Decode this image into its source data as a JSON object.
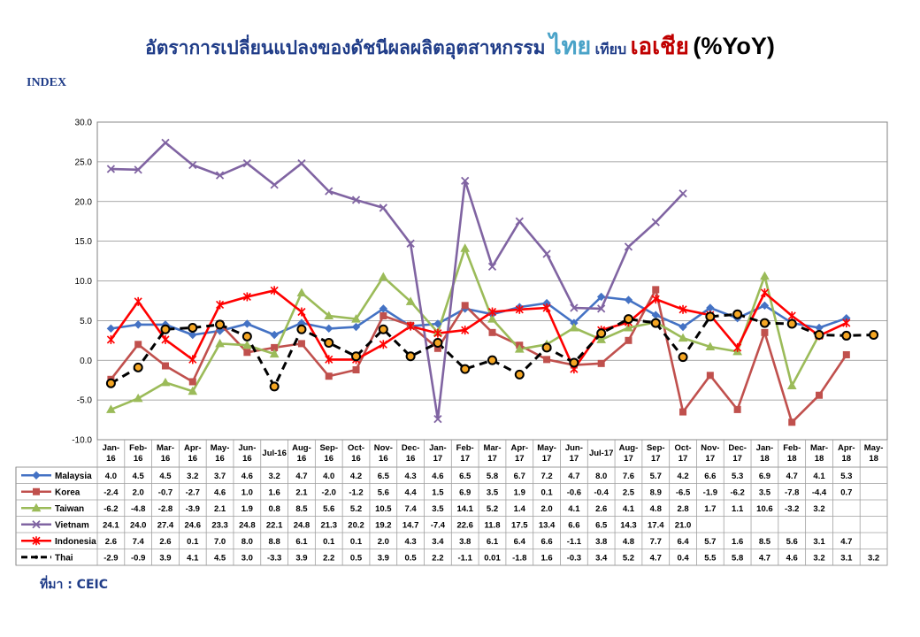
{
  "title": {
    "main": "อัตราการเปลี่ยนแปลงของดัชนีผลผลิตอุตสาหกรรม",
    "thai": "ไทย",
    "mid": "เทียบ",
    "asia": "เอเชีย",
    "yoy": "(%YoY)"
  },
  "source": "ที่มา : CEIC",
  "chart_data": {
    "type": "line",
    "ylabel": "INDEX",
    "ylim": [
      -10,
      30
    ],
    "yticks": [
      "-10.0",
      "-5.0",
      "0.0",
      "5.0",
      "10.0",
      "15.0",
      "20.0",
      "25.0",
      "30.0"
    ],
    "grid": true,
    "legend": "table-below",
    "categories": [
      [
        "Jan-",
        "16"
      ],
      [
        "Feb-",
        "16"
      ],
      [
        "Mar-",
        "16"
      ],
      [
        "Apr-",
        "16"
      ],
      [
        "May-",
        "16"
      ],
      [
        "Jun-",
        "16"
      ],
      [
        "Jul-16"
      ],
      [
        "Aug-",
        "16"
      ],
      [
        "Sep-",
        "16"
      ],
      [
        "Oct-",
        "16"
      ],
      [
        "Nov-",
        "16"
      ],
      [
        "Dec-",
        "16"
      ],
      [
        "Jan-",
        "17"
      ],
      [
        "Feb-",
        "17"
      ],
      [
        "Mar-",
        "17"
      ],
      [
        "Apr-",
        "17"
      ],
      [
        "May-",
        "17"
      ],
      [
        "Jun-",
        "17"
      ],
      [
        "Jul-17"
      ],
      [
        "Aug-",
        "17"
      ],
      [
        "Sep-",
        "17"
      ],
      [
        "Oct-",
        "17"
      ],
      [
        "Nov-",
        "17"
      ],
      [
        "Dec-",
        "17"
      ],
      [
        "Jan-",
        "18"
      ],
      [
        "Feb-",
        "18"
      ],
      [
        "Mar-",
        "18"
      ],
      [
        "Apr-",
        "18"
      ],
      [
        "May-",
        "18"
      ]
    ],
    "series": [
      {
        "name": "Malaysia",
        "color": "#4472c4",
        "marker": "diamond",
        "dash": false,
        "values": [
          4.0,
          4.5,
          4.5,
          3.2,
          3.7,
          4.6,
          3.2,
          4.7,
          4.0,
          4.2,
          6.5,
          4.3,
          4.6,
          6.5,
          5.8,
          6.7,
          7.2,
          4.7,
          8.0,
          7.6,
          5.7,
          4.2,
          6.6,
          5.3,
          6.9,
          4.7,
          4.1,
          5.3,
          null
        ],
        "labels": [
          "4.0",
          "4.5",
          "4.5",
          "3.2",
          "3.7",
          "4.6",
          "3.2",
          "4.7",
          "4.0",
          "4.2",
          "6.5",
          "4.3",
          "4.6",
          "6.5",
          "5.8",
          "6.7",
          "7.2",
          "4.7",
          "8.0",
          "7.6",
          "5.7",
          "4.2",
          "6.6",
          "5.3",
          "6.9",
          "4.7",
          "4.1",
          "5.3",
          ""
        ]
      },
      {
        "name": "Korea",
        "color": "#c0504d",
        "marker": "square",
        "dash": false,
        "values": [
          -2.4,
          2.0,
          -0.7,
          -2.7,
          4.6,
          1.0,
          1.6,
          2.1,
          -2.0,
          -1.2,
          5.6,
          4.4,
          1.5,
          6.9,
          3.5,
          1.9,
          0.1,
          -0.6,
          -0.4,
          2.5,
          8.9,
          -6.5,
          -1.9,
          -6.2,
          3.5,
          -7.8,
          -4.4,
          0.7,
          null
        ],
        "labels": [
          "-2.4",
          "2.0",
          "-0.7",
          "-2.7",
          "4.6",
          "1.0",
          "1.6",
          "2.1",
          "-2.0",
          "-1.2",
          "5.6",
          "4.4",
          "1.5",
          "6.9",
          "3.5",
          "1.9",
          "0.1",
          "-0.6",
          "-0.4",
          "2.5",
          "8.9",
          "-6.5",
          "-1.9",
          "-6.2",
          "3.5",
          "-7.8",
          "-4.4",
          "0.7",
          ""
        ]
      },
      {
        "name": "Taiwan",
        "color": "#9bbb59",
        "marker": "triangle",
        "dash": false,
        "values": [
          -6.2,
          -4.8,
          -2.8,
          -3.9,
          2.1,
          1.9,
          0.8,
          8.5,
          5.6,
          5.2,
          10.5,
          7.4,
          3.5,
          14.1,
          5.2,
          1.4,
          2.0,
          4.1,
          2.6,
          4.1,
          4.8,
          2.8,
          1.7,
          1.1,
          10.6,
          -3.2,
          3.2,
          null,
          null
        ],
        "labels": [
          "-6.2",
          "-4.8",
          "-2.8",
          "-3.9",
          "2.1",
          "1.9",
          "0.8",
          "8.5",
          "5.6",
          "5.2",
          "10.5",
          "7.4",
          "3.5",
          "14.1",
          "5.2",
          "1.4",
          "2.0",
          "4.1",
          "2.6",
          "4.1",
          "4.8",
          "2.8",
          "1.7",
          "1.1",
          "10.6",
          "-3.2",
          "3.2",
          "",
          ""
        ]
      },
      {
        "name": "Vietnam",
        "color": "#8064a2",
        "marker": "x",
        "dash": false,
        "values": [
          24.1,
          24.0,
          27.4,
          24.6,
          23.3,
          24.8,
          22.1,
          24.8,
          21.3,
          20.2,
          19.2,
          14.7,
          -7.4,
          22.6,
          11.8,
          17.5,
          13.4,
          6.6,
          6.5,
          14.3,
          17.4,
          21.0,
          null,
          null,
          null,
          null,
          null,
          null,
          null
        ],
        "labels": [
          "24.1",
          "24.0",
          "27.4",
          "24.6",
          "23.3",
          "24.8",
          "22.1",
          "24.8",
          "21.3",
          "20.2",
          "19.2",
          "14.7",
          "-7.4",
          "22.6",
          "11.8",
          "17.5",
          "13.4",
          "6.6",
          "6.5",
          "14.3",
          "17.4",
          "21.0",
          "",
          "",
          "",
          "",
          "",
          "",
          ""
        ]
      },
      {
        "name": "Indonesia",
        "color": "#ff0000",
        "marker": "star",
        "dash": false,
        "values": [
          2.6,
          7.4,
          2.6,
          0.1,
          7.0,
          8.0,
          8.8,
          6.1,
          0.1,
          0.1,
          2.0,
          4.3,
          3.4,
          3.8,
          6.1,
          6.4,
          6.6,
          -1.1,
          3.8,
          4.8,
          7.7,
          6.4,
          5.7,
          1.6,
          8.5,
          5.6,
          3.1,
          4.7,
          null
        ],
        "labels": [
          "2.6",
          "7.4",
          "2.6",
          "0.1",
          "7.0",
          "8.0",
          "8.8",
          "6.1",
          "0.1",
          "0.1",
          "2.0",
          "4.3",
          "3.4",
          "3.8",
          "6.1",
          "6.4",
          "6.6",
          "-1.1",
          "3.8",
          "4.8",
          "7.7",
          "6.4",
          "5.7",
          "1.6",
          "8.5",
          "5.6",
          "3.1",
          "4.7",
          ""
        ]
      },
      {
        "name": "Thai",
        "color": "#000000",
        "marker": "circle",
        "dash": true,
        "values": [
          -2.9,
          -0.9,
          3.9,
          4.1,
          4.5,
          3.0,
          -3.3,
          3.9,
          2.2,
          0.5,
          3.9,
          0.5,
          2.2,
          -1.1,
          0.01,
          -1.8,
          1.6,
          -0.3,
          3.4,
          5.2,
          4.7,
          0.4,
          5.5,
          5.8,
          4.7,
          4.6,
          3.2,
          3.1,
          3.2
        ],
        "labels": [
          "-2.9",
          "-0.9",
          "3.9",
          "4.1",
          "4.5",
          "3.0",
          "-3.3",
          "3.9",
          "2.2",
          "0.5",
          "3.9",
          "0.5",
          "2.2",
          "-1.1",
          "0.01",
          "-1.8",
          "1.6",
          "-0.3",
          "3.4",
          "5.2",
          "4.7",
          "0.4",
          "5.5",
          "5.8",
          "4.7",
          "4.6",
          "3.2",
          "3.1",
          "3.2"
        ]
      }
    ]
  }
}
